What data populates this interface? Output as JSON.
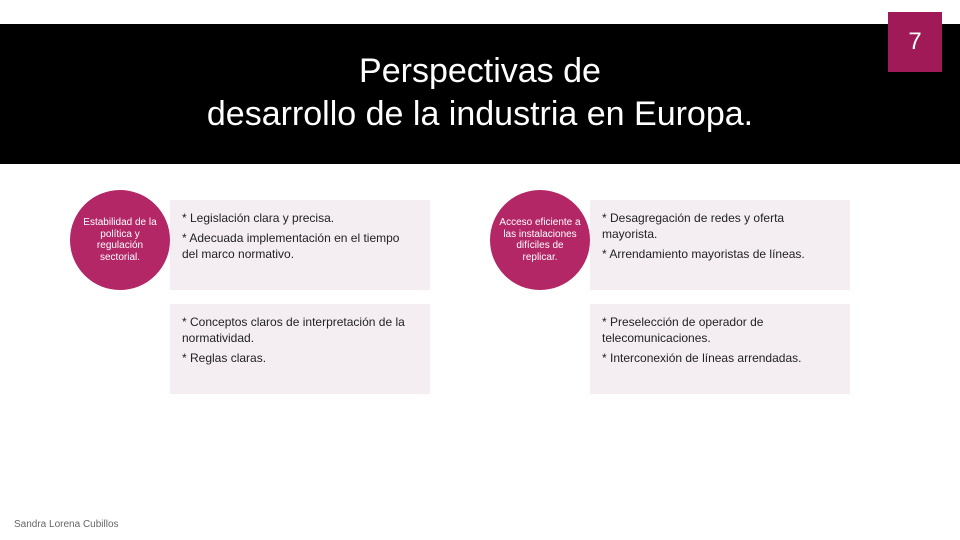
{
  "page_number": "7",
  "title_line1": "Perspectivas de",
  "title_line2": "desarrollo de la industria en Europa.",
  "footer_author": "Sandra Lorena Cubillos",
  "colors": {
    "header_band": "#000000",
    "badge_bg": "#a01a58",
    "bubble_bg": "#b32767",
    "cell_bg": "#f4eef2",
    "text_light": "#ffffff",
    "text_dark": "#222222"
  },
  "columns": [
    {
      "bubble": "Estabilidad de la política y regulación sectorial.",
      "cell1": {
        "p1": "* Legislación clara y precisa.",
        "p2": "* Adecuada implementación en el tiempo del marco normativo."
      },
      "cell2": {
        "p1": "* Conceptos claros de interpretación de la normatividad.",
        "p2": "* Reglas claras."
      }
    },
    {
      "bubble": "Acceso eficiente a las instalaciones difíciles de replicar.",
      "cell1": {
        "p1": "* Desagregación de redes y oferta mayorista.",
        "p2": "* Arrendamiento mayoristas de líneas."
      },
      "cell2": {
        "p1": "* Preselección de operador de telecomunicaciones.",
        "p2": "* Interconexión de líneas arrendadas."
      }
    }
  ]
}
